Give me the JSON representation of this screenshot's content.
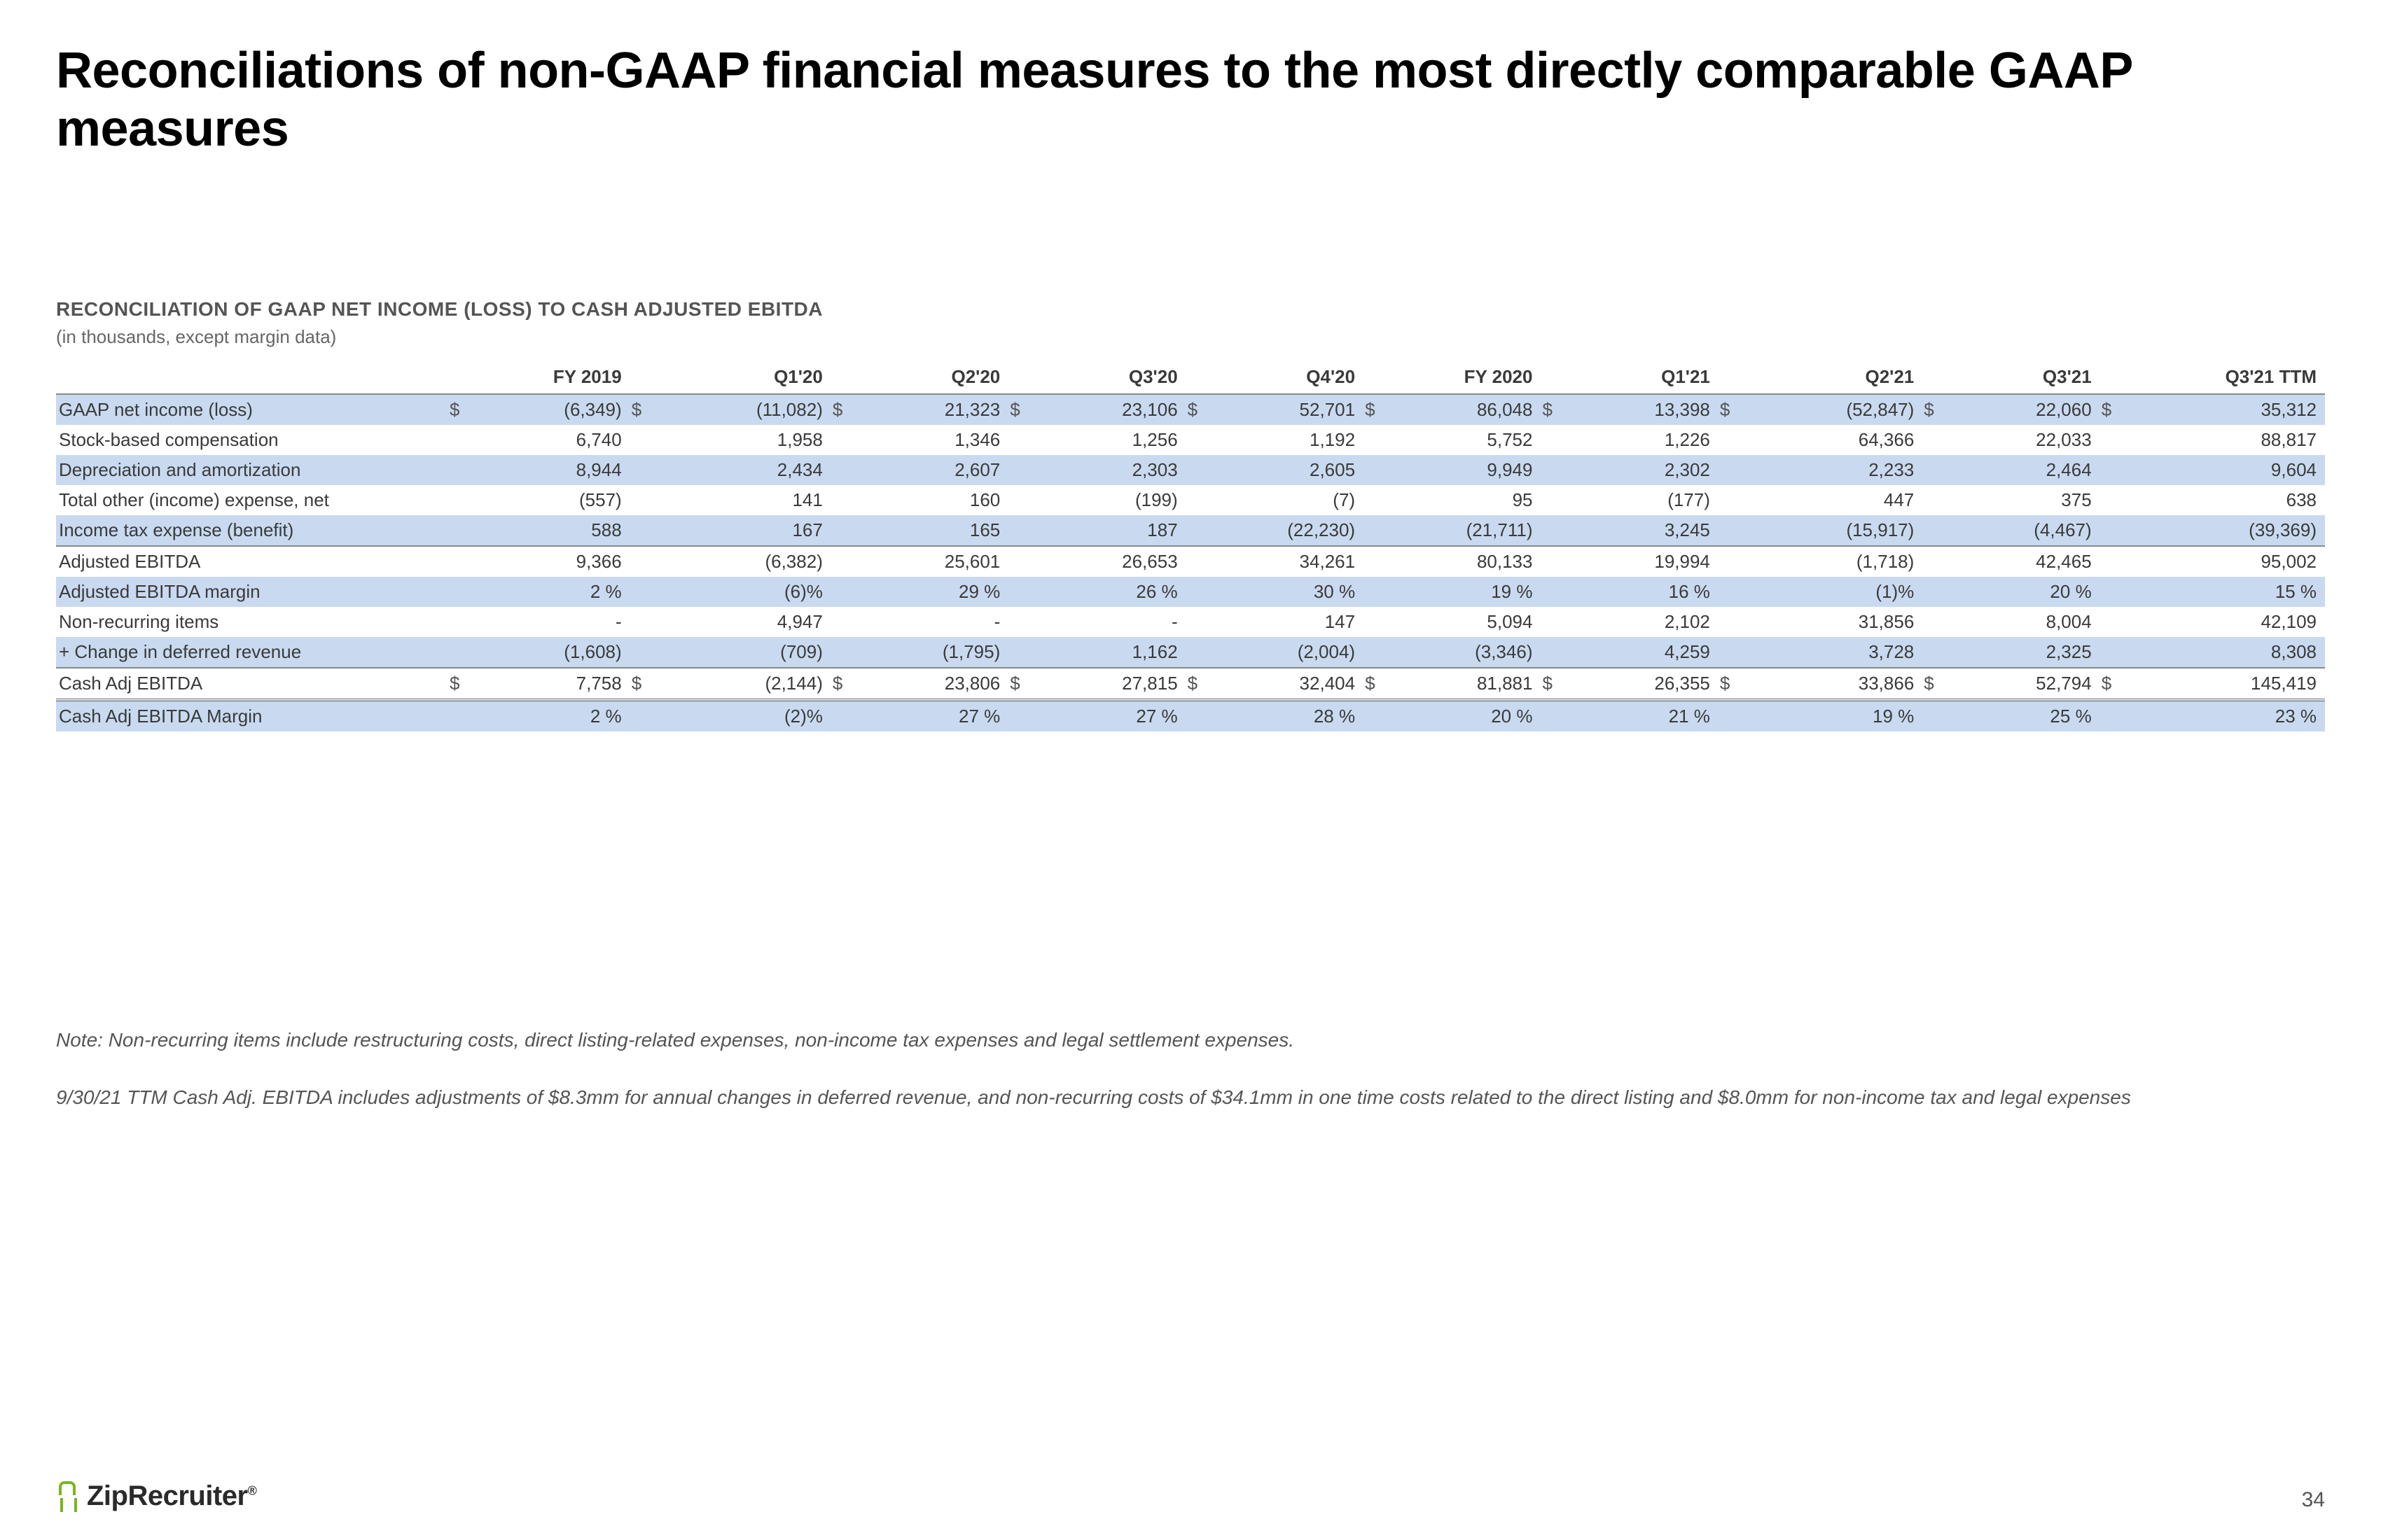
{
  "title": "Reconciliations of non-GAAP financial measures to the most directly comparable GAAP measures",
  "subtitle": "RECONCILIATION OF GAAP NET INCOME (LOSS) TO CASH ADJUSTED EBITDA",
  "units": "(in thousands, except margin data)",
  "columns": [
    "FY 2019",
    "Q1'20",
    "Q2'20",
    "Q3'20",
    "Q4'20",
    "FY 2020",
    "Q1'21",
    "Q2'21",
    "Q3'21",
    "Q3'21 TTM"
  ],
  "rows": [
    {
      "label": "GAAP net income (loss)",
      "shaded": true,
      "hasDollar": true,
      "cells": [
        "(6,349)",
        "(11,082)",
        "21,323",
        "23,106",
        "52,701",
        "86,048",
        "13,398",
        "(52,847)",
        "22,060",
        "35,312"
      ]
    },
    {
      "label": "Stock-based compensation",
      "shaded": false,
      "cells": [
        "6,740",
        "1,958",
        "1,346",
        "1,256",
        "1,192",
        "5,752",
        "1,226",
        "64,366",
        "22,033",
        "88,817"
      ]
    },
    {
      "label": "Depreciation and amortization",
      "shaded": true,
      "cells": [
        "8,944",
        "2,434",
        "2,607",
        "2,303",
        "2,605",
        "9,949",
        "2,302",
        "2,233",
        "2,464",
        "9,604"
      ]
    },
    {
      "label": "Total other (income) expense, net",
      "shaded": false,
      "cells": [
        "(557)",
        "141",
        "160",
        "(199)",
        "(7)",
        "95",
        "(177)",
        "447",
        "375",
        "638"
      ]
    },
    {
      "label": "Income tax expense (benefit)",
      "shaded": true,
      "underline": true,
      "cells": [
        "588",
        "167",
        "165",
        "187",
        "(22,230)",
        "(21,711)",
        "3,245",
        "(15,917)",
        "(4,467)",
        "(39,369)"
      ]
    },
    {
      "label": "Adjusted EBITDA",
      "shaded": false,
      "cells": [
        "9,366",
        "(6,382)",
        "25,601",
        "26,653",
        "34,261",
        "80,133",
        "19,994",
        "(1,718)",
        "42,465",
        "95,002"
      ]
    },
    {
      "label": "Adjusted EBITDA margin",
      "shaded": true,
      "cells": [
        "2 %",
        "(6)%",
        "29 %",
        "26 %",
        "30 %",
        "19 %",
        "16 %",
        "(1)%",
        "20 %",
        "15 %"
      ]
    },
    {
      "label": "Non-recurring items",
      "shaded": false,
      "cells": [
        "-",
        "4,947",
        "-",
        "-",
        "147",
        "5,094",
        "2,102",
        "31,856",
        "8,004",
        "42,109"
      ]
    },
    {
      "label": "+ Change in deferred revenue",
      "shaded": true,
      "underline": true,
      "cells": [
        "(1,608)",
        "(709)",
        "(1,795)",
        "1,162",
        "(2,004)",
        "(3,346)",
        "4,259",
        "3,728",
        "2,325",
        "8,308"
      ]
    },
    {
      "label": "Cash Adj EBITDA",
      "shaded": false,
      "hasDollar": true,
      "doubleRule": true,
      "cells": [
        "7,758",
        "(2,144)",
        "23,806",
        "27,815",
        "32,404",
        "81,881",
        "26,355",
        "33,866",
        "52,794",
        "145,419"
      ]
    },
    {
      "label": "Cash Adj EBITDA Margin",
      "shaded": true,
      "cells": [
        "2 %",
        "(2)%",
        "27 %",
        "27 %",
        "28 %",
        "20 %",
        "21 %",
        "19 %",
        "25 %",
        "23 %"
      ]
    }
  ],
  "note1": "Note: Non-recurring items include restructuring costs, direct listing-related expenses, non-income tax expenses and legal settlement expenses.",
  "note2": "9/30/21 TTM Cash Adj. EBITDA includes adjustments of $8.3mm for annual changes in deferred revenue, and non-recurring costs of $34.1mm in one time costs related to the direct listing and $8.0mm for non-income tax and legal expenses",
  "brand": "ZipRecruiter",
  "pageNum": "34",
  "colors": {
    "shade": "#c9daf0",
    "brandGreen": "#79b61d"
  }
}
